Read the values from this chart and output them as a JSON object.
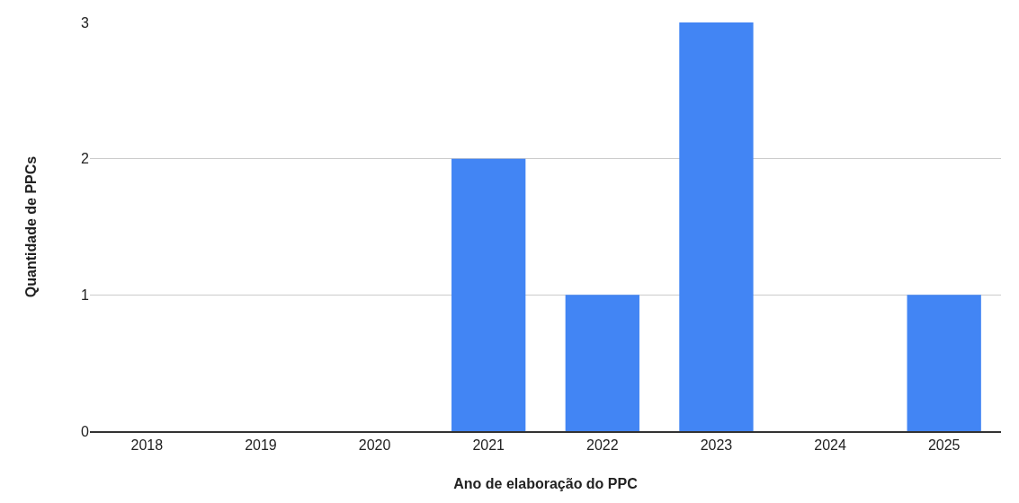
{
  "chart_data": {
    "type": "bar",
    "xlabel": "Ano de elaboração do PPC",
    "ylabel": "Quantidade de PPCs",
    "categories": [
      "2018",
      "2019",
      "2020",
      "2021",
      "2022",
      "2023",
      "2024",
      "2025"
    ],
    "values": [
      0,
      0,
      0,
      2,
      1,
      3,
      0,
      1
    ],
    "color": "#4285f4",
    "ylim": [
      0,
      3
    ],
    "yticks": [
      0,
      1,
      2,
      3
    ],
    "grid": "y"
  }
}
